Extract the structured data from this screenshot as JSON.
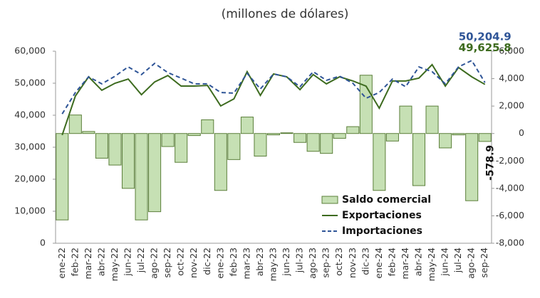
{
  "chart_data": {
    "type": "bar",
    "title": "(millones de dólares)",
    "categories": [
      "ene-22",
      "feb-22",
      "mar-22",
      "abr-22",
      "may-22",
      "jun-22",
      "jul-22",
      "ago-22",
      "sep-22",
      "oct-22",
      "nov-22",
      "dic-22",
      "ene-23",
      "feb-23",
      "mar-23",
      "abr-23",
      "may-23",
      "jun-23",
      "jul-23",
      "ago-23",
      "sep-23",
      "oct-23",
      "nov-23",
      "dic-23",
      "ene-24",
      "feb-24",
      "mar-24",
      "abr-24",
      "may-24",
      "jun-24",
      "jul-24",
      "ago-24",
      "sep-24"
    ],
    "series": [
      {
        "name": "Saldo comercial",
        "type": "bar",
        "axis": "y2",
        "color": "#c6e0b4",
        "edge_color": "#5b7f3a",
        "values": [
          -6300,
          1350,
          150,
          -1800,
          -2300,
          -4000,
          -6300,
          -5700,
          -950,
          -2100,
          -150,
          1000,
          -4150,
          -1900,
          1200,
          -1650,
          -100,
          50,
          -650,
          -1300,
          -1450,
          -350,
          500,
          4250,
          -4150,
          -550,
          2000,
          -3800,
          2000,
          -1050,
          -100,
          -4900,
          -578.9
        ],
        "value_labels": [
          null,
          null,
          null,
          null,
          null,
          null,
          null,
          null,
          null,
          null,
          null,
          null,
          null,
          null,
          null,
          null,
          null,
          null,
          null,
          null,
          null,
          null,
          null,
          null,
          null,
          null,
          null,
          null,
          null,
          null,
          null,
          null,
          "-578.9"
        ]
      },
      {
        "name": "Exportaciones",
        "type": "line",
        "color": "#3d6b1f",
        "line_style": "solid",
        "values": [
          33800,
          46000,
          52000,
          47800,
          50000,
          51300,
          46400,
          50400,
          52400,
          49100,
          49100,
          49300,
          42900,
          45100,
          53600,
          46200,
          52900,
          52000,
          48000,
          52700,
          49800,
          52000,
          50700,
          49100,
          42200,
          50700,
          50700,
          51600,
          55800,
          49100,
          54900,
          52000,
          49625.8
        ],
        "value_labels": [
          null,
          null,
          null,
          null,
          null,
          null,
          null,
          null,
          null,
          null,
          null,
          null,
          null,
          null,
          null,
          null,
          null,
          null,
          null,
          null,
          null,
          null,
          null,
          null,
          null,
          null,
          null,
          null,
          null,
          null,
          null,
          null,
          "49,625.8"
        ]
      },
      {
        "name": "Importaciones",
        "type": "line",
        "color": "#2f5597",
        "line_style": "dashed",
        "values": [
          40400,
          47100,
          52000,
          49800,
          52200,
          55100,
          52700,
          56200,
          53300,
          51600,
          49800,
          49800,
          47100,
          46900,
          53100,
          48200,
          52900,
          52000,
          48900,
          53600,
          50900,
          52200,
          50000,
          45300,
          47100,
          51300,
          48900,
          55100,
          53600,
          49800,
          55100,
          57100,
          50204.9
        ],
        "value_labels": [
          null,
          null,
          null,
          null,
          null,
          null,
          null,
          null,
          null,
          null,
          null,
          null,
          null,
          null,
          null,
          null,
          null,
          null,
          null,
          null,
          null,
          null,
          null,
          null,
          null,
          null,
          null,
          null,
          null,
          null,
          null,
          null,
          "50,204.9"
        ]
      }
    ],
    "ylim": [
      0,
      60000
    ],
    "yticks": [
      0,
      {
        "value": 10000,
        "label": "10,000"
      },
      {
        "value": 20000,
        "label": "20,000"
      },
      {
        "value": 30000,
        "label": "30,000"
      },
      {
        "value": 40000,
        "label": "40,000"
      },
      {
        "value": 50000,
        "label": "50,000"
      },
      {
        "value": 60000,
        "label": "60,000"
      }
    ],
    "y2lim": [
      -8000,
      6000
    ],
    "y2ticks": [
      {
        "value": -8000,
        "label": "-8,000"
      },
      {
        "value": -6000,
        "label": "-6,000"
      },
      {
        "value": -4000,
        "label": "-4,000"
      },
      {
        "value": -2000,
        "label": "-2,000"
      },
      0,
      {
        "value": 2000,
        "label": "2,000"
      },
      {
        "value": 4000,
        "label": "4,000"
      },
      {
        "value": 6000,
        "label": "6,000"
      }
    ],
    "grid": false,
    "legend": "lower right"
  }
}
